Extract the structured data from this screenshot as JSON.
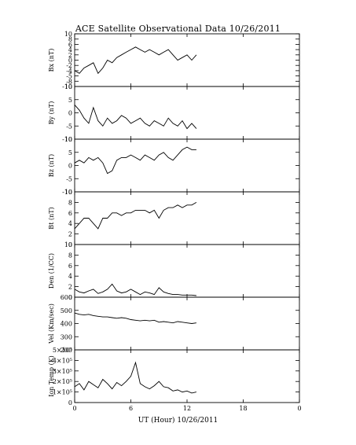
{
  "title": "ACE Satellite Observational Data   10/26/2011",
  "xaxis": {
    "label": "UT (Hour)   10/26/2011",
    "ticks": [
      "0",
      "6",
      "12",
      "18",
      "0"
    ],
    "range_hours": [
      0,
      24
    ]
  },
  "colors": {
    "line": "#000000",
    "frame": "#000000",
    "background": "#ffffff"
  },
  "chart_data": [
    {
      "type": "line",
      "ylabel": "Bx (nT)",
      "ylim": [
        -10,
        10
      ],
      "yticks": [
        "-10",
        "-8",
        "-5",
        "-4",
        "-2",
        "0",
        "2",
        "4",
        "6",
        "8",
        "10"
      ],
      "x": [
        0,
        0.5,
        1,
        1.5,
        2,
        2.5,
        3,
        3.5,
        4,
        4.5,
        5,
        5.5,
        6,
        6.5,
        7,
        7.5,
        8,
        8.5,
        9,
        9.5,
        10,
        10.5,
        11,
        11.5,
        12,
        12.5,
        13
      ],
      "values": [
        -4,
        -5,
        -3,
        -2,
        -1,
        -5,
        -3,
        0,
        -1,
        1,
        2,
        3,
        4,
        5,
        4,
        3,
        4,
        3,
        2,
        3,
        4,
        2,
        0,
        1,
        2,
        0,
        2
      ]
    },
    {
      "type": "line",
      "ylabel": "By (nT)",
      "ylim": [
        -10,
        10
      ],
      "yticks": [
        "-10",
        "-5",
        "0",
        "5",
        "10"
      ],
      "x": [
        0,
        0.5,
        1,
        1.5,
        2,
        2.5,
        3,
        3.5,
        4,
        4.5,
        5,
        5.5,
        6,
        6.5,
        7,
        7.5,
        8,
        8.5,
        9,
        9.5,
        10,
        10.5,
        11,
        11.5,
        12,
        12.5,
        13
      ],
      "values": [
        3,
        1,
        -2,
        -4,
        2,
        -3,
        -5,
        -2,
        -4,
        -3,
        -1,
        -2,
        -4,
        -3,
        -2,
        -4,
        -5,
        -3,
        -4,
        -5,
        -2,
        -4,
        -5,
        -3,
        -6,
        -4,
        -6
      ]
    },
    {
      "type": "line",
      "ylabel": "Bz (nT)",
      "ylim": [
        -10,
        10
      ],
      "yticks": [
        "-10",
        "-5",
        "0",
        "5",
        "10"
      ],
      "x": [
        0,
        0.5,
        1,
        1.5,
        2,
        2.5,
        3,
        3.5,
        4,
        4.5,
        5,
        5.5,
        6,
        6.5,
        7,
        7.5,
        8,
        8.5,
        9,
        9.5,
        10,
        10.5,
        11,
        11.5,
        12,
        12.5,
        13
      ],
      "values": [
        1,
        2,
        1,
        3,
        2,
        3,
        1,
        -3,
        -2,
        2,
        3,
        3,
        4,
        3,
        2,
        4,
        3,
        2,
        4,
        5,
        3,
        2,
        4,
        6,
        7,
        6,
        6
      ]
    },
    {
      "type": "line",
      "ylabel": "Bt (nT)",
      "ylim": [
        0,
        10
      ],
      "yticks": [
        "0",
        "2",
        "4",
        "6",
        "8",
        "10"
      ],
      "x": [
        0,
        0.5,
        1,
        1.5,
        2,
        2.5,
        3,
        3.5,
        4,
        4.5,
        5,
        5.5,
        6,
        6.5,
        7,
        7.5,
        8,
        8.5,
        9,
        9.5,
        10,
        10.5,
        11,
        11.5,
        12,
        12.5,
        13
      ],
      "values": [
        3,
        4,
        5,
        5,
        4,
        3,
        5,
        5,
        6,
        6,
        5.5,
        6,
        6,
        6.5,
        6.5,
        6.5,
        6,
        6.5,
        5,
        6.5,
        7,
        7,
        7.5,
        7,
        7.5,
        7.5,
        8
      ]
    },
    {
      "type": "line",
      "ylabel": "Den (1/CC)",
      "ylim": [
        0,
        10
      ],
      "yticks": [
        "0",
        "2",
        "4",
        "6",
        "8",
        "10"
      ],
      "x": [
        0,
        0.5,
        1,
        1.5,
        2,
        2.5,
        3,
        3.5,
        4,
        4.5,
        5,
        5.5,
        6,
        6.5,
        7,
        7.5,
        8,
        8.5,
        9,
        9.5,
        10,
        10.5,
        11,
        11.5,
        12,
        12.5,
        13
      ],
      "values": [
        1.5,
        1,
        0.8,
        1.2,
        1.5,
        0.7,
        1,
        1.5,
        2.5,
        1.2,
        0.8,
        1,
        1.5,
        1,
        0.5,
        1,
        0.8,
        0.5,
        1.8,
        1,
        0.7,
        0.5,
        0.5,
        0.4,
        0.4,
        0.4,
        0.3
      ]
    },
    {
      "type": "line",
      "ylabel": "Vel (Km/sec)",
      "ylim": [
        200,
        600
      ],
      "yticks": [
        "200",
        "300",
        "400",
        "500",
        "600"
      ],
      "x": [
        0,
        0.5,
        1,
        1.5,
        2,
        2.5,
        3,
        3.5,
        4,
        4.5,
        5,
        5.5,
        6,
        6.5,
        7,
        7.5,
        8,
        8.5,
        9,
        9.5,
        10,
        10.5,
        11,
        11.5,
        12,
        12.5,
        13
      ],
      "values": [
        480,
        470,
        465,
        470,
        460,
        455,
        450,
        450,
        445,
        440,
        445,
        440,
        430,
        425,
        420,
        425,
        420,
        425,
        410,
        415,
        410,
        405,
        415,
        410,
        405,
        400,
        405
      ]
    },
    {
      "type": "line",
      "ylabel": "Ion Temp (K)",
      "ylim": [
        0,
        500000
      ],
      "yticks": [
        "0",
        "1×10⁵",
        "2×10⁵",
        "3×10⁵",
        "4×10⁵",
        "5×10⁵"
      ],
      "x": [
        0,
        0.5,
        1,
        1.5,
        2,
        2.5,
        3,
        3.5,
        4,
        4.5,
        5,
        5.5,
        6,
        6.5,
        7,
        7.5,
        8,
        8.5,
        9,
        9.5,
        10,
        10.5,
        11,
        11.5,
        12,
        12.5,
        13
      ],
      "values": [
        150000,
        180000,
        120000,
        200000,
        170000,
        140000,
        220000,
        180000,
        130000,
        190000,
        160000,
        200000,
        250000,
        380000,
        180000,
        150000,
        130000,
        160000,
        200000,
        150000,
        140000,
        110000,
        120000,
        100000,
        110000,
        90000,
        100000
      ]
    }
  ]
}
